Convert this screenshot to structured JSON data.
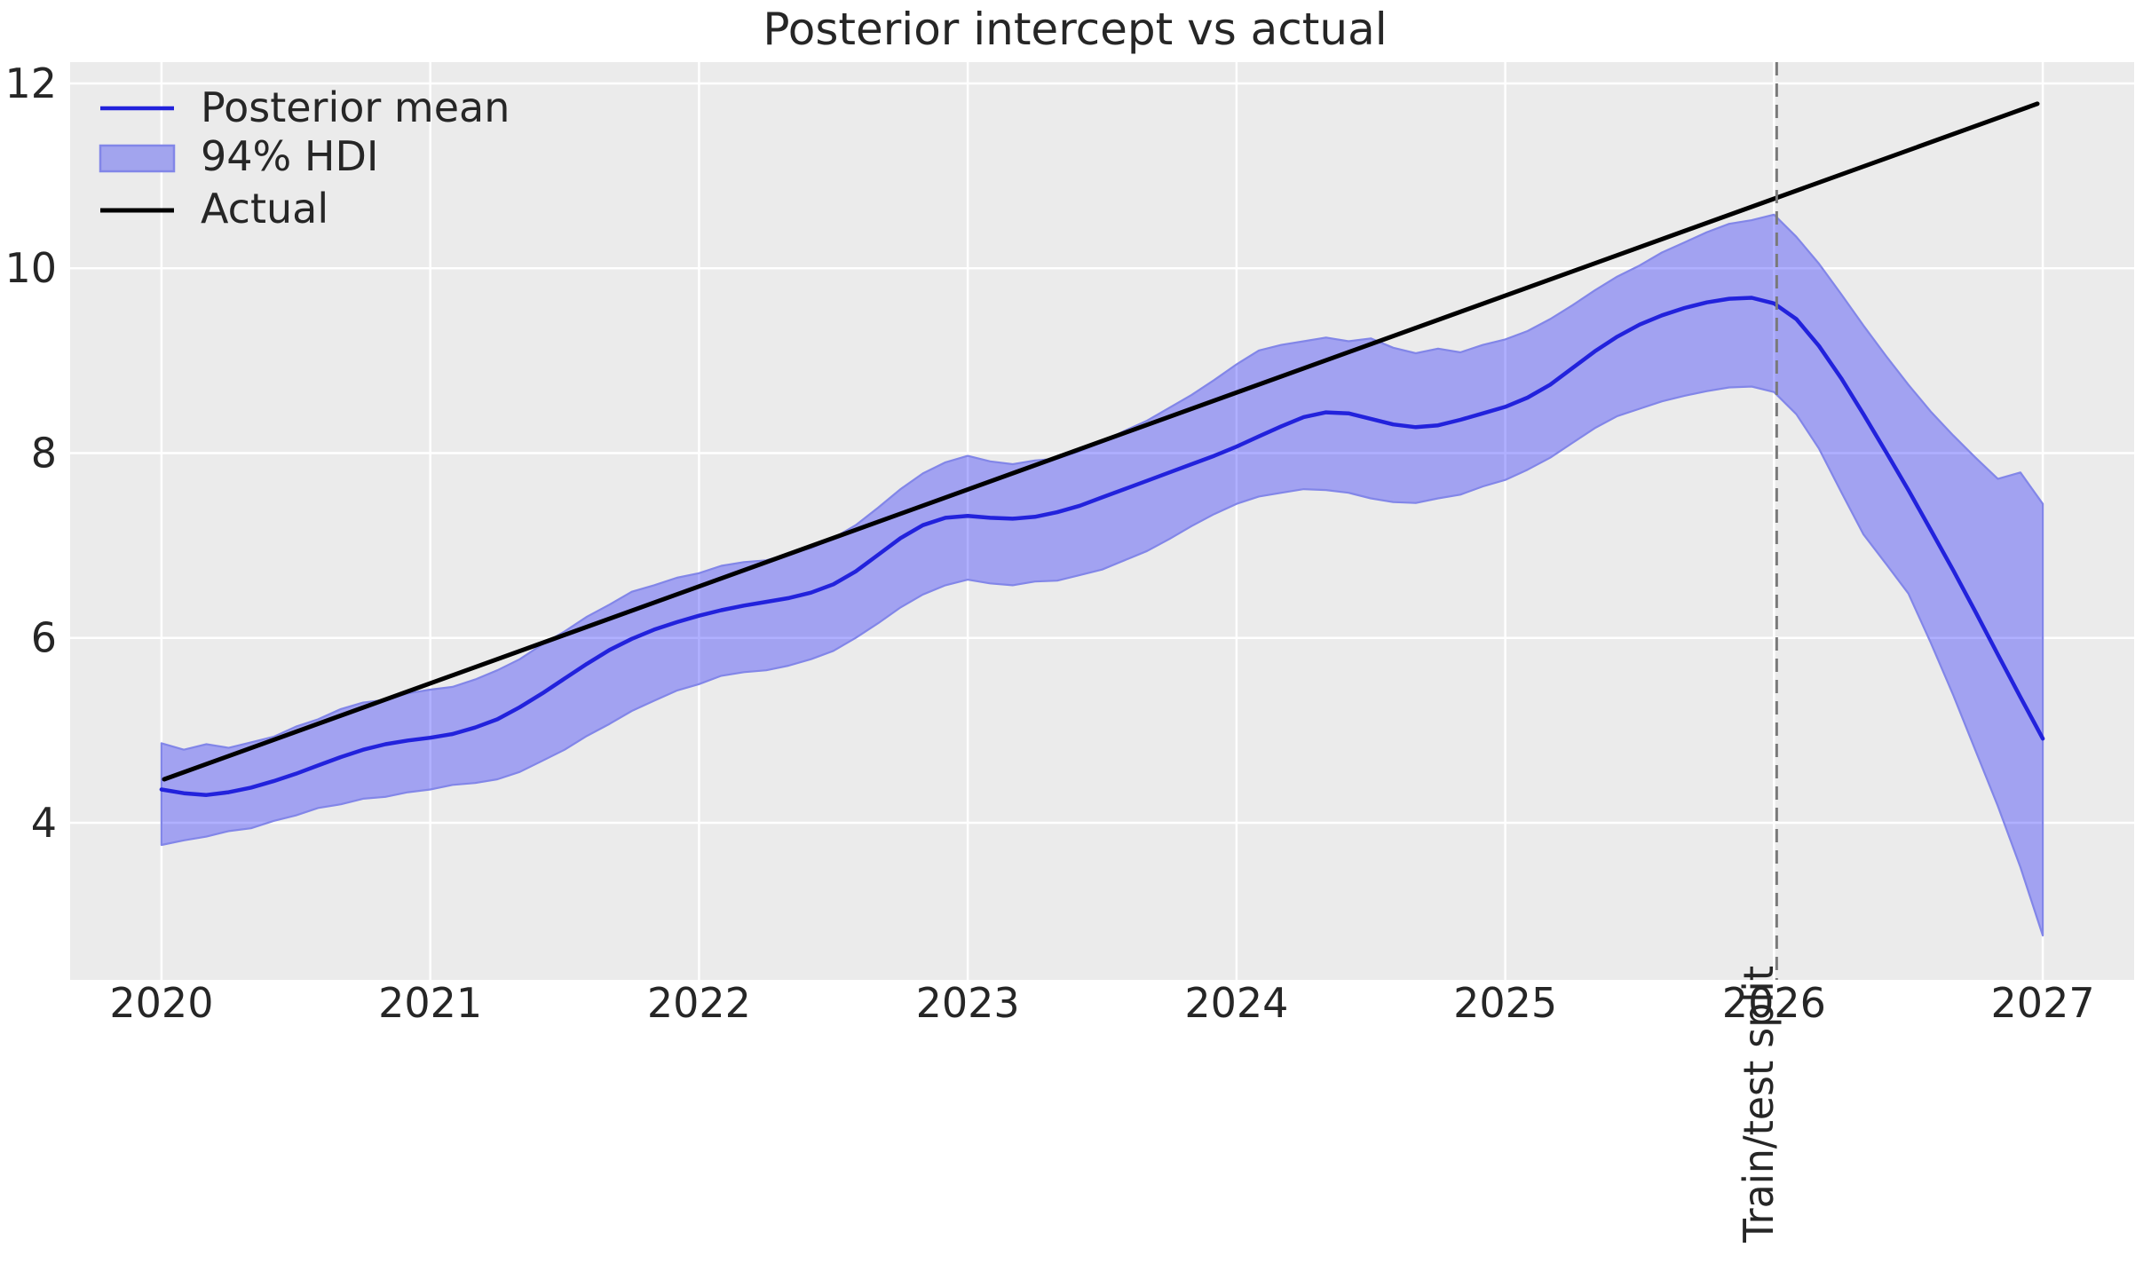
{
  "chart_data": {
    "type": "line",
    "title": "Posterior intercept vs actual",
    "xlabel": "",
    "ylabel": "",
    "xlim": [
      2019.66,
      2027.34
    ],
    "ylim": [
      2.3,
      12.23
    ],
    "x_ticks": [
      2020,
      2021,
      2022,
      2023,
      2024,
      2025,
      2026,
      2027
    ],
    "y_ticks": [
      4,
      6,
      8,
      10,
      12
    ],
    "grid": true,
    "legend_position": "upper left",
    "x": [
      2020,
      2020.083,
      2020.167,
      2020.25,
      2020.333,
      2020.417,
      2020.5,
      2020.583,
      2020.667,
      2020.75,
      2020.833,
      2020.917,
      2021,
      2021.083,
      2021.167,
      2021.25,
      2021.333,
      2021.417,
      2021.5,
      2021.583,
      2021.667,
      2021.75,
      2021.833,
      2021.917,
      2022,
      2022.083,
      2022.167,
      2022.25,
      2022.333,
      2022.417,
      2022.5,
      2022.583,
      2022.667,
      2022.75,
      2022.833,
      2022.917,
      2023,
      2023.083,
      2023.167,
      2023.25,
      2023.333,
      2023.417,
      2023.5,
      2023.583,
      2023.667,
      2023.75,
      2023.833,
      2023.917,
      2024,
      2024.083,
      2024.167,
      2024.25,
      2024.333,
      2024.417,
      2024.5,
      2024.583,
      2024.667,
      2024.75,
      2024.833,
      2024.917,
      2025,
      2025.083,
      2025.167,
      2025.25,
      2025.333,
      2025.417,
      2025.5,
      2025.583,
      2025.667,
      2025.75,
      2025.833,
      2025.917,
      2026,
      2026.083,
      2026.167,
      2026.25,
      2026.333,
      2026.417,
      2026.5,
      2026.583,
      2026.667,
      2026.75,
      2026.833,
      2026.917,
      2027
    ],
    "series": [
      {
        "name": "Posterior mean",
        "color": "#2222dc",
        "values": [
          4.36,
          4.32,
          4.3,
          4.33,
          4.38,
          4.45,
          4.53,
          4.62,
          4.71,
          4.79,
          4.85,
          4.89,
          4.92,
          4.96,
          5.03,
          5.12,
          5.25,
          5.4,
          5.56,
          5.72,
          5.87,
          5.99,
          6.09,
          6.17,
          6.24,
          6.3,
          6.35,
          6.39,
          6.43,
          6.49,
          6.58,
          6.72,
          6.9,
          7.08,
          7.22,
          7.3,
          7.32,
          7.3,
          7.29,
          7.31,
          7.36,
          7.43,
          7.52,
          7.61,
          7.7,
          7.79,
          7.88,
          7.97,
          8.07,
          8.18,
          8.29,
          8.39,
          8.44,
          8.43,
          8.37,
          8.31,
          8.28,
          8.3,
          8.36,
          8.43,
          8.5,
          8.6,
          8.74,
          8.92,
          9.1,
          9.26,
          9.39,
          9.49,
          9.57,
          9.63,
          9.67,
          9.68,
          9.62,
          9.45,
          9.16,
          8.81,
          8.42,
          8.01,
          7.6,
          7.17,
          6.73,
          6.28,
          5.82,
          5.36,
          4.91
        ]
      },
      {
        "name": "Actual",
        "color": "#000000",
        "x": [
          2020.01,
          2026.98
        ],
        "values": [
          4.47,
          11.78
        ]
      }
    ],
    "band": {
      "name": "94% HDI",
      "fill": "#0000ff",
      "fill_opacity": 0.31,
      "edge": "#8286e8",
      "upper": [
        4.86,
        4.79,
        4.85,
        4.81,
        4.87,
        4.93,
        5.04,
        5.12,
        5.23,
        5.3,
        5.33,
        5.4,
        5.44,
        5.47,
        5.55,
        5.65,
        5.77,
        5.93,
        6.07,
        6.23,
        6.36,
        6.5,
        6.57,
        6.65,
        6.7,
        6.78,
        6.82,
        6.84,
        6.91,
        6.97,
        7.08,
        7.22,
        7.41,
        7.61,
        7.78,
        7.9,
        7.97,
        7.91,
        7.88,
        7.92,
        7.94,
        8.02,
        8.12,
        8.24,
        8.35,
        8.49,
        8.63,
        8.79,
        8.96,
        9.11,
        9.17,
        9.21,
        9.25,
        9.21,
        9.24,
        9.14,
        9.08,
        9.13,
        9.09,
        9.17,
        9.23,
        9.32,
        9.45,
        9.6,
        9.76,
        9.91,
        10.03,
        10.17,
        10.28,
        10.39,
        10.48,
        10.52,
        10.58,
        10.34,
        10.05,
        9.72,
        9.38,
        9.05,
        8.74,
        8.45,
        8.19,
        7.95,
        7.72,
        7.79,
        7.45
      ],
      "lower": [
        3.76,
        3.81,
        3.85,
        3.91,
        3.94,
        4.02,
        4.08,
        4.16,
        4.2,
        4.26,
        4.28,
        4.33,
        4.36,
        4.41,
        4.43,
        4.47,
        4.55,
        4.67,
        4.79,
        4.94,
        5.07,
        5.21,
        5.32,
        5.43,
        5.5,
        5.59,
        5.63,
        5.65,
        5.7,
        5.77,
        5.86,
        6.0,
        6.16,
        6.33,
        6.47,
        6.57,
        6.63,
        6.59,
        6.57,
        6.61,
        6.62,
        6.68,
        6.74,
        6.84,
        6.94,
        7.07,
        7.21,
        7.34,
        7.45,
        7.53,
        7.57,
        7.61,
        7.6,
        7.57,
        7.51,
        7.47,
        7.46,
        7.51,
        7.55,
        7.64,
        7.71,
        7.82,
        7.95,
        8.11,
        8.27,
        8.4,
        8.48,
        8.56,
        8.62,
        8.67,
        8.71,
        8.72,
        8.66,
        8.42,
        8.05,
        7.58,
        7.12,
        6.8,
        6.48,
        5.95,
        5.38,
        4.78,
        4.18,
        3.52,
        2.78
      ]
    },
    "annotations": [
      {
        "type": "vline",
        "text": "Train/test split",
        "x": 2026.01,
        "color": "#7a7a7a",
        "linestyle": "dashed"
      }
    ],
    "style": {
      "axes_background": "#ebebeb",
      "grid_color": "#ffffff",
      "text_color": "#262626"
    }
  }
}
